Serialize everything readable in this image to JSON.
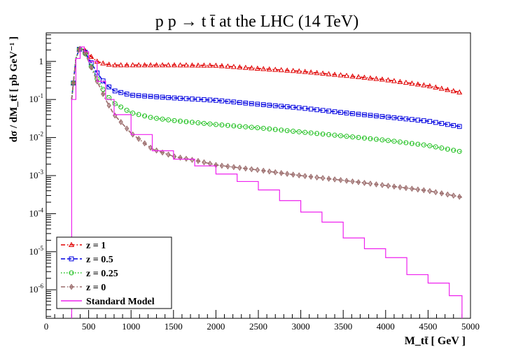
{
  "chart_data": {
    "type": "line",
    "title": "p p → t t̄ at the LHC (14 TeV)",
    "xlabel": "M_tt̄ [ GeV ]",
    "ylabel": "dσ / dM_tt̄ [ pb GeV⁻¹ ]",
    "xlim": [
      0,
      5000
    ],
    "ylim_log10": [
      -6.75,
      0.75
    ],
    "x_ticks": [
      0,
      500,
      1000,
      1500,
      2000,
      2500,
      3000,
      3500,
      4000,
      4500,
      5000
    ],
    "x_tick_labels": [
      "0",
      "500",
      "1000",
      "1500",
      "2000",
      "2500",
      "3000",
      "3500",
      "4000",
      "4500",
      "5000"
    ],
    "y_ticks": [
      1,
      0.1,
      0.01,
      0.001,
      0.0001,
      1e-05,
      1e-06
    ],
    "y_tick_labels": [
      {
        "base": "1",
        "exp": ""
      },
      {
        "base": "10",
        "exp": "-1"
      },
      {
        "base": "10",
        "exp": "-2"
      },
      {
        "base": "10",
        "exp": "-3"
      },
      {
        "base": "10",
        "exp": "-4"
      },
      {
        "base": "10",
        "exp": "-5"
      },
      {
        "base": "10",
        "exp": "-6"
      }
    ],
    "grid": false,
    "legend_position": "bottom-left",
    "series": [
      {
        "name": "z = 1",
        "color": "#e00000",
        "dash": "dash-dot",
        "marker": "triangle",
        "x": [
          300,
          350,
          400,
          450,
          500,
          600,
          700,
          800,
          1000,
          1500,
          2000,
          2500,
          3000,
          3500,
          4000,
          4500,
          4900
        ],
        "y": [
          0.1,
          1.2,
          2.4,
          2.0,
          1.5,
          1.0,
          0.85,
          0.8,
          0.8,
          0.8,
          0.78,
          0.65,
          0.55,
          0.43,
          0.33,
          0.23,
          0.15
        ]
      },
      {
        "name": "z = 0.5",
        "color": "#0000e0",
        "dash": "dash",
        "marker": "square",
        "x": [
          300,
          350,
          400,
          450,
          500,
          600,
          700,
          800,
          1000,
          1500,
          2000,
          2500,
          3000,
          3500,
          4000,
          4500,
          4900
        ],
        "y": [
          0.1,
          1.2,
          2.4,
          1.9,
          1.2,
          0.5,
          0.25,
          0.17,
          0.13,
          0.11,
          0.095,
          0.075,
          0.06,
          0.045,
          0.035,
          0.027,
          0.019
        ]
      },
      {
        "name": "z = 0.25",
        "color": "#20c020",
        "dash": "dot",
        "marker": "circle",
        "x": [
          300,
          350,
          400,
          450,
          500,
          600,
          700,
          800,
          1000,
          1250,
          1500,
          2000,
          2500,
          3000,
          3500,
          4000,
          4500,
          4900
        ],
        "y": [
          0.1,
          1.2,
          2.4,
          1.8,
          1.0,
          0.35,
          0.14,
          0.08,
          0.045,
          0.033,
          0.028,
          0.022,
          0.018,
          0.014,
          0.011,
          0.0085,
          0.0062,
          0.0042
        ]
      },
      {
        "name": "z = 0",
        "color": "#9a6b6b",
        "dash": "dash-dot",
        "marker": "diamond",
        "x": [
          300,
          350,
          400,
          450,
          500,
          600,
          700,
          800,
          1000,
          1250,
          1500,
          1800,
          2000,
          2500,
          3000,
          3500,
          4000,
          4500,
          4900
        ],
        "y": [
          0.1,
          1.2,
          2.4,
          1.8,
          1.0,
          0.3,
          0.1,
          0.04,
          0.013,
          0.005,
          0.0032,
          0.0024,
          0.0019,
          0.0014,
          0.001,
          0.00075,
          0.00055,
          0.0004,
          0.00027
        ]
      },
      {
        "name": "Standard Model",
        "color": "#ee22ee",
        "dash": "solid",
        "marker": "none",
        "x": [
          300,
          350,
          400,
          450,
          500,
          600,
          700,
          800,
          1000,
          1250,
          1500,
          1750,
          2000,
          2250,
          2500,
          2750,
          3000,
          3250,
          3500,
          3750,
          4000,
          4250,
          4500,
          4750,
          4900
        ],
        "y": [
          0.1,
          1.2,
          2.4,
          1.8,
          1.0,
          0.3,
          0.1,
          0.04,
          0.012,
          0.0045,
          0.0027,
          0.0018,
          0.0011,
          0.0007,
          0.00042,
          0.00022,
          0.00011,
          6e-05,
          2.3e-05,
          1.2e-05,
          7e-06,
          2.5e-06,
          1.5e-06,
          7e-07,
          1.5e-07
        ]
      }
    ]
  }
}
